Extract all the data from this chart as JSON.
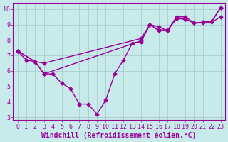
{
  "line1": {
    "x": [
      0,
      1,
      2,
      3,
      4,
      5,
      6,
      7,
      8,
      9,
      10,
      11,
      12,
      13,
      14,
      15,
      16,
      17,
      18,
      19,
      20,
      21,
      22,
      23
    ],
    "y": [
      7.3,
      6.7,
      6.6,
      5.8,
      5.8,
      5.2,
      4.85,
      3.85,
      3.85,
      3.2,
      4.1,
      5.8,
      6.7,
      7.8,
      7.9,
      9.0,
      8.85,
      8.6,
      9.5,
      9.5,
      9.1,
      9.15,
      9.2,
      10.1
    ]
  },
  "line2": {
    "x": [
      0,
      2,
      3,
      14,
      15,
      16,
      17,
      18,
      19,
      20,
      21,
      22,
      23
    ],
    "y": [
      7.3,
      6.6,
      6.5,
      8.1,
      9.0,
      8.65,
      8.65,
      9.4,
      9.35,
      9.1,
      9.15,
      9.2,
      10.1
    ]
  },
  "line3": {
    "x": [
      0,
      2,
      3,
      14,
      15,
      16,
      17,
      18,
      19,
      20,
      21,
      22,
      23
    ],
    "y": [
      7.3,
      6.6,
      5.8,
      7.95,
      9.0,
      8.6,
      8.6,
      9.4,
      9.35,
      9.1,
      9.1,
      9.15,
      9.5
    ]
  },
  "color": "#990099",
  "bg_color": "#c8eaea",
  "grid_color": "#a0c8c8",
  "xlabel": "Windchill (Refroidissement éolien,°C)",
  "xlim": [
    -0.5,
    23.5
  ],
  "ylim": [
    2.8,
    10.4
  ],
  "yticks": [
    3,
    4,
    5,
    6,
    7,
    8,
    9,
    10
  ],
  "xticks": [
    0,
    1,
    2,
    3,
    4,
    5,
    6,
    7,
    8,
    9,
    10,
    11,
    12,
    13,
    14,
    15,
    16,
    17,
    18,
    19,
    20,
    21,
    22,
    23
  ],
  "marker": "D",
  "markersize": 2.5,
  "linewidth": 1.0,
  "xlabel_fontsize": 7,
  "tick_fontsize": 6,
  "xlabel_color": "#990099",
  "tick_color": "#990099"
}
